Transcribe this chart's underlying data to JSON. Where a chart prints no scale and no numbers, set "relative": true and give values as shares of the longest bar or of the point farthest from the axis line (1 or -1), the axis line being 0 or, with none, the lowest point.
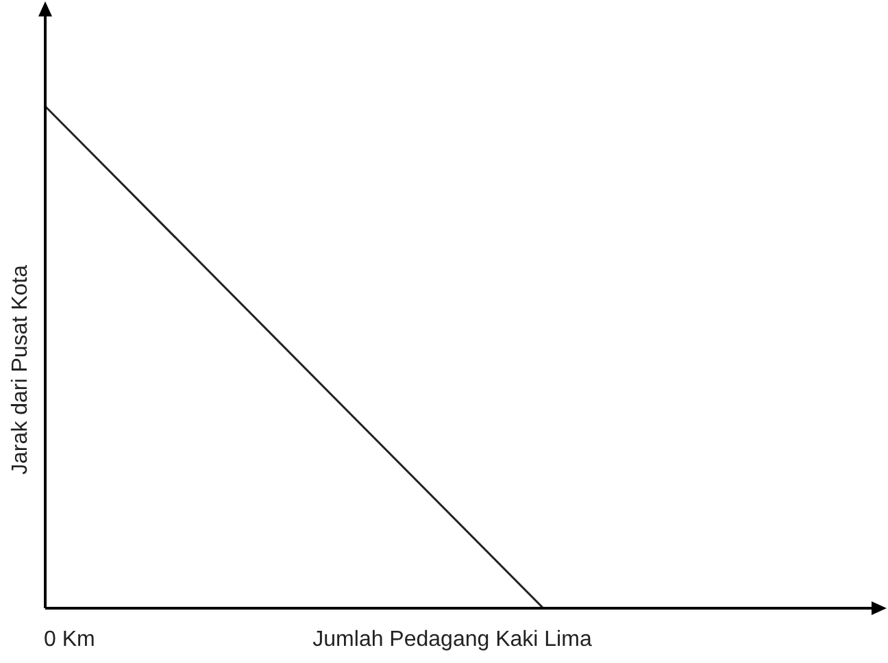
{
  "chart_data": {
    "type": "line",
    "relative": true,
    "xlabel": "Jumlah Pedagang Kaki Lima",
    "ylabel": "Jarak dari Pusat Kota",
    "annotations": [
      "0 Km"
    ],
    "categories": [
      null,
      null
    ],
    "series": [
      {
        "color": "#222222",
        "values": [
          1,
          0
        ]
      }
    ],
    "grid": false,
    "legend": false,
    "marker": "none",
    "line_style": "solid"
  }
}
